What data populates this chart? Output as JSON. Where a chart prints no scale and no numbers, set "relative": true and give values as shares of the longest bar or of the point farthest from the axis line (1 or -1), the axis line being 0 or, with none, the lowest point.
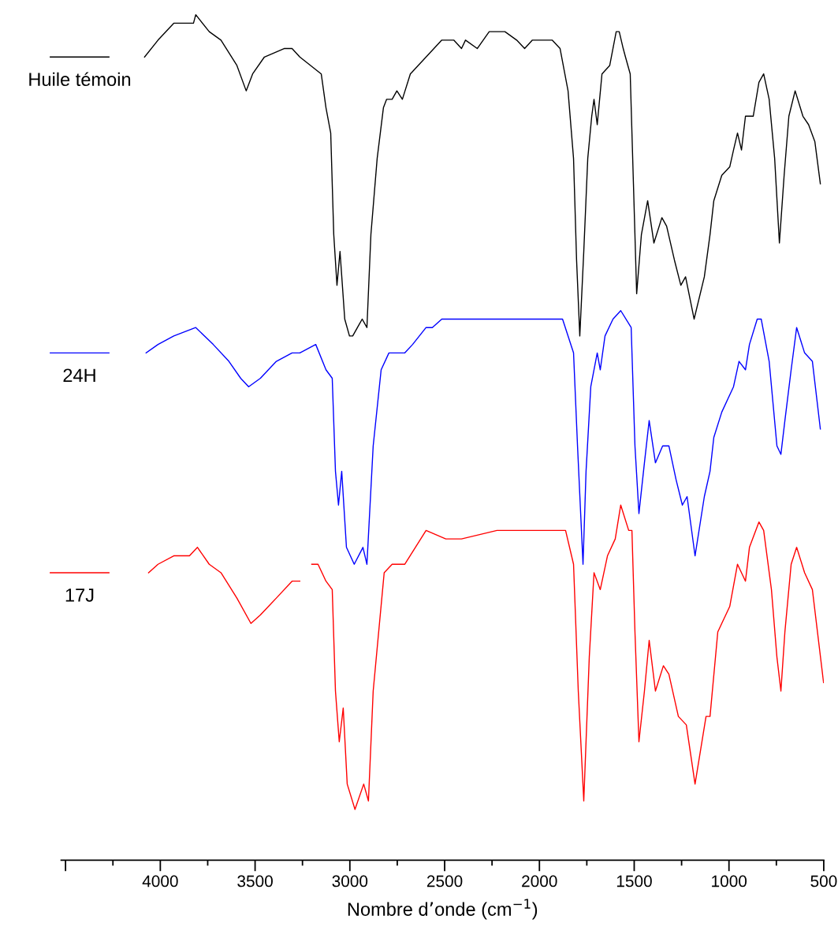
{
  "chart_data": {
    "type": "line",
    "relative": true,
    "xlabel": "Nombre d’onde (cm$^{−1}$)",
    "xlim": [
      4523,
      500
    ],
    "xticks": [
      {
        "value": 4500,
        "label": null
      },
      4000,
      3500,
      3000,
      2500,
      2000,
      1500,
      1000,
      500
    ],
    "tick_labels": "x",
    "grid": false,
    "legend": "left",
    "marker": "none",
    "line_style": "solid",
    "series": [
      {
        "name": "Huile témoin",
        "color": "#000000",
        "x": [
          4083,
          4012,
          3929,
          3825,
          3813,
          3742,
          3680,
          3596,
          3547,
          3513,
          3451,
          3347,
          3305,
          3264,
          3151,
          3126,
          3101,
          3085,
          3068,
          3052,
          3027,
          3002,
          2985,
          2960,
          2935,
          2910,
          2889,
          2856,
          2823,
          2806,
          2777,
          2752,
          2723,
          2681,
          2598,
          2515,
          2452,
          2411,
          2390,
          2328,
          2265,
          2182,
          2120,
          2078,
          2037,
          1974,
          1933,
          1891,
          1849,
          1820,
          1804,
          1787,
          1766,
          1745,
          1724,
          1712,
          1695,
          1670,
          1629,
          1595,
          1579,
          1558,
          1546,
          1521,
          1504,
          1487,
          1462,
          1429,
          1396,
          1354,
          1329,
          1288,
          1254,
          1229,
          1184,
          1130,
          1100,
          1080,
          1038,
          996,
          976,
          955,
          934,
          913,
          872,
          842,
          817,
          788,
          759,
          734,
          709,
          684,
          651,
          610,
          580,
          547,
          518
        ],
        "values": [
          0.95,
          0.97,
          0.99,
          0.99,
          1.0,
          0.98,
          0.97,
          0.94,
          0.91,
          0.93,
          0.95,
          0.96,
          0.96,
          0.95,
          0.93,
          0.89,
          0.86,
          0.74,
          0.68,
          0.72,
          0.64,
          0.62,
          0.62,
          0.63,
          0.64,
          0.63,
          0.74,
          0.83,
          0.89,
          0.9,
          0.9,
          0.91,
          0.9,
          0.93,
          0.95,
          0.97,
          0.97,
          0.96,
          0.97,
          0.96,
          0.98,
          0.98,
          0.97,
          0.96,
          0.97,
          0.97,
          0.97,
          0.96,
          0.91,
          0.83,
          0.71,
          0.62,
          0.72,
          0.83,
          0.88,
          0.9,
          0.87,
          0.93,
          0.94,
          0.98,
          0.98,
          0.96,
          0.95,
          0.93,
          0.8,
          0.67,
          0.74,
          0.78,
          0.73,
          0.76,
          0.75,
          0.71,
          0.68,
          0.69,
          0.64,
          0.69,
          0.74,
          0.78,
          0.81,
          0.82,
          0.84,
          0.86,
          0.84,
          0.88,
          0.88,
          0.92,
          0.93,
          0.9,
          0.83,
          0.73,
          0.81,
          0.88,
          0.91,
          0.88,
          0.87,
          0.85,
          0.8
        ]
      },
      {
        "name": "24H",
        "color": "#0000ff",
        "x": [
          4075,
          4012,
          3929,
          3813,
          3721,
          3638,
          3576,
          3534,
          3472,
          3388,
          3305,
          3264,
          3180,
          3126,
          3093,
          3076,
          3060,
          3043,
          3018,
          2977,
          2931,
          2910,
          2877,
          2835,
          2794,
          2752,
          2710,
          2669,
          2598,
          2565,
          2515,
          2411,
          2349,
          2224,
          2099,
          1974,
          1933,
          1878,
          1820,
          1799,
          1770,
          1754,
          1729,
          1695,
          1679,
          1654,
          1612,
          1571,
          1516,
          1496,
          1475,
          1446,
          1421,
          1388,
          1350,
          1317,
          1279,
          1246,
          1221,
          1179,
          1130,
          1100,
          1080,
          1038,
          976,
          947,
          913,
          892,
          851,
          830,
          788,
          747,
          726,
          705,
          672,
          643,
          601,
          560,
          518
        ],
        "values": [
          0.6,
          0.61,
          0.62,
          0.63,
          0.61,
          0.59,
          0.57,
          0.56,
          0.57,
          0.59,
          0.6,
          0.6,
          0.61,
          0.58,
          0.57,
          0.46,
          0.42,
          0.46,
          0.37,
          0.35,
          0.37,
          0.35,
          0.49,
          0.58,
          0.6,
          0.6,
          0.6,
          0.61,
          0.63,
          0.63,
          0.64,
          0.64,
          0.64,
          0.64,
          0.64,
          0.64,
          0.64,
          0.64,
          0.6,
          0.49,
          0.35,
          0.46,
          0.56,
          0.6,
          0.58,
          0.62,
          0.64,
          0.65,
          0.63,
          0.49,
          0.41,
          0.47,
          0.52,
          0.47,
          0.49,
          0.49,
          0.45,
          0.42,
          0.43,
          0.36,
          0.43,
          0.46,
          0.5,
          0.53,
          0.56,
          0.59,
          0.58,
          0.61,
          0.64,
          0.64,
          0.59,
          0.49,
          0.48,
          0.52,
          0.58,
          0.63,
          0.6,
          0.59,
          0.51
        ]
      },
      {
        "name": "17J",
        "color": "#ff0000",
        "x": [
          4062,
          4012,
          3929,
          3846,
          3804,
          3742,
          3680,
          3596,
          3522,
          3472,
          3388,
          3305,
          3264,
          3232,
          3201,
          3168,
          3126,
          3093,
          3076,
          3056,
          3035,
          3014,
          2973,
          2927,
          2902,
          2877,
          2819,
          2777,
          2735,
          2710,
          2598,
          2494,
          2411,
          2224,
          2016,
          1974,
          1933,
          1862,
          1820,
          1795,
          1766,
          1737,
          1712,
          1679,
          1641,
          1600,
          1571,
          1529,
          1512,
          1496,
          1475,
          1446,
          1421,
          1388,
          1346,
          1317,
          1267,
          1225,
          1179,
          1121,
          1100,
          1059,
          996,
          955,
          913,
          892,
          842,
          817,
          776,
          747,
          726,
          705,
          672,
          643,
          601,
          560,
          501
        ],
        "values": [
          0.34,
          0.35,
          0.36,
          0.36,
          0.37,
          0.35,
          0.34,
          0.31,
          0.28,
          0.29,
          0.31,
          0.33,
          0.33,
          null,
          0.35,
          0.35,
          0.33,
          0.32,
          0.2,
          0.14,
          0.18,
          0.09,
          0.06,
          0.09,
          0.07,
          0.2,
          0.34,
          0.35,
          0.35,
          0.35,
          0.39,
          0.38,
          0.38,
          0.39,
          0.39,
          0.39,
          0.39,
          0.39,
          0.35,
          0.2,
          0.07,
          0.24,
          0.34,
          0.32,
          0.36,
          0.38,
          0.42,
          0.39,
          0.39,
          0.27,
          0.14,
          0.2,
          0.26,
          0.2,
          0.23,
          0.22,
          0.17,
          0.16,
          0.09,
          0.17,
          0.17,
          0.27,
          0.3,
          0.35,
          0.33,
          0.37,
          0.4,
          0.39,
          0.32,
          0.24,
          0.2,
          0.27,
          0.35,
          0.37,
          0.34,
          0.32,
          0.21
        ]
      }
    ]
  }
}
